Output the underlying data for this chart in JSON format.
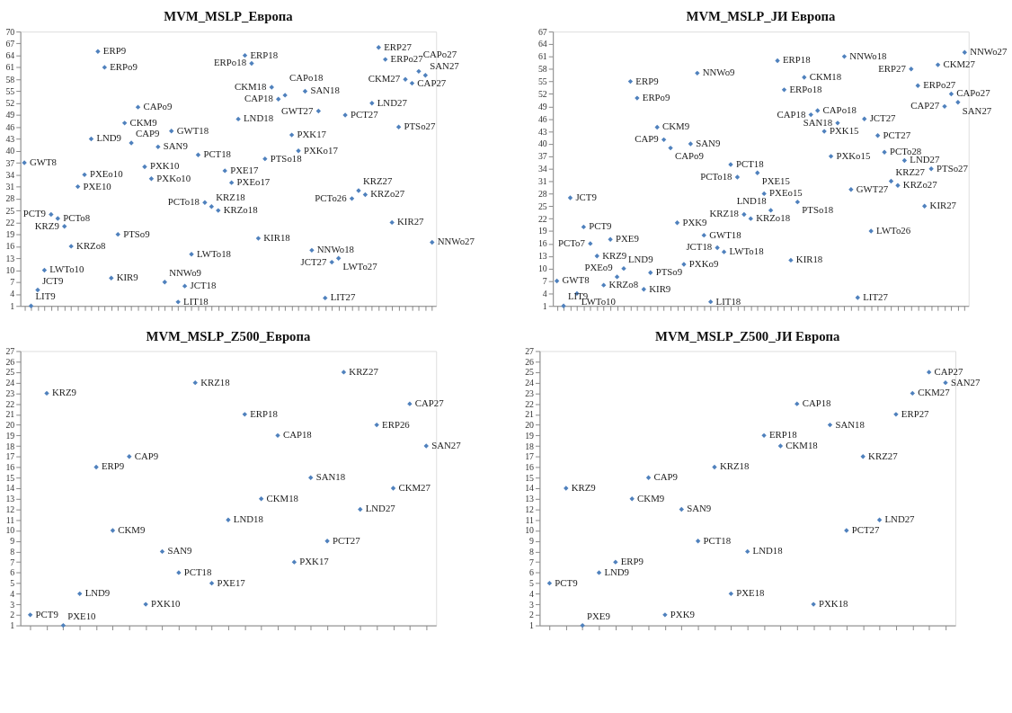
{
  "chart_data": [
    {
      "type": "scatter",
      "title": "MVM_MSLP_Европа",
      "marker": "diamond",
      "grid": false,
      "tick_labels": "y",
      "color": "#4f81bd",
      "categories": [
        null,
        null,
        null,
        null,
        null,
        null,
        null,
        null,
        null,
        null,
        null,
        null,
        null,
        null,
        null,
        null,
        null,
        null,
        null,
        null,
        null,
        null,
        null,
        null,
        null,
        null,
        null,
        null,
        null,
        null,
        null,
        null,
        null,
        null,
        null,
        null,
        null,
        null,
        null,
        null,
        null,
        null,
        null,
        null,
        null,
        null,
        null,
        null,
        null,
        null,
        null,
        null,
        null,
        null,
        null,
        null,
        null,
        null,
        null,
        null,
        null,
        null
      ],
      "values": [
        37,
        1,
        5,
        10,
        24,
        23,
        21,
        16,
        31,
        34,
        43,
        65,
        61,
        8,
        19,
        47,
        42,
        51,
        36,
        33,
        41,
        7,
        45,
        2,
        6,
        14,
        39,
        27,
        26,
        25,
        35,
        32,
        48,
        64,
        62,
        18,
        38,
        56,
        53,
        54,
        44,
        40,
        55,
        15,
        50,
        3,
        12,
        13,
        49,
        28,
        30,
        29,
        52,
        66,
        63,
        22,
        46,
        58,
        57,
        60,
        59,
        17
      ],
      "value_labels": [
        "GWT8",
        "LIT9",
        "JCT9",
        "LWTo10",
        "PCT9",
        "PCTo8",
        "KRZ9",
        "KRZo8",
        "PXE10",
        "PXEo10",
        "LND9",
        "ERP9",
        "ERPo9",
        "KIR9",
        "PTSo9",
        "CKM9",
        "CAP9",
        "CAPo9",
        "PXK10",
        "PXKo10",
        "SAN9",
        "NNWo9",
        "GWT18",
        "LIT18",
        "JCT18",
        "LWTo18",
        "PCT18",
        "PCTo18",
        "KRZ18",
        "KRZo18",
        "PXE17",
        "PXEo17",
        "LND18",
        "ERP18",
        "ERPo18",
        "KIR18",
        "PTSo18",
        "CKM18",
        "CAP18",
        "CAPo18",
        "PXK17",
        "PXKo17",
        "SAN18",
        "NNWo18",
        "GWT27",
        "LIT27",
        "JCT27",
        "LWTo27",
        "PCT27",
        "PCTo26",
        "KRZ27",
        "KRZo27",
        "LND27",
        "ERP27",
        "ERPo27",
        "KIR27",
        "PTSo27",
        "CKM27",
        "CAP27",
        "CAPo27",
        "SAN27",
        "NNWo27"
      ],
      "ylim": [
        1,
        70
      ],
      "yticks": [
        1,
        4,
        7,
        10,
        13,
        16,
        19,
        22,
        25,
        28,
        31,
        34,
        37,
        40,
        43,
        46,
        49,
        52,
        55,
        58,
        61,
        64,
        67,
        70
      ]
    },
    {
      "type": "scatter",
      "title": "MVM_MSLP_ЈИ Европа",
      "marker": "diamond",
      "grid": false,
      "tick_labels": "y",
      "color": "#4f81bd",
      "categories": [
        null,
        null,
        null,
        null,
        null,
        null,
        null,
        null,
        null,
        null,
        null,
        null,
        null,
        null,
        null,
        null,
        null,
        null,
        null,
        null,
        null,
        null,
        null,
        null,
        null,
        null,
        null,
        null,
        null,
        null,
        null,
        null,
        null,
        null,
        null,
        null,
        null,
        null,
        null,
        null,
        null,
        null,
        null,
        null,
        null,
        null,
        null,
        null,
        null,
        null,
        null,
        null,
        null,
        null,
        null,
        null,
        null,
        null,
        null,
        null,
        null,
        null
      ],
      "values": [
        7,
        1,
        27,
        4,
        20,
        16,
        13,
        6,
        17,
        8,
        10,
        55,
        51,
        5,
        9,
        44,
        41,
        39,
        21,
        11,
        40,
        57,
        18,
        2,
        15,
        14,
        35,
        32,
        23,
        22,
        33,
        28,
        24,
        60,
        53,
        12,
        26,
        56,
        47,
        48,
        43,
        37,
        45,
        61,
        29,
        3,
        46,
        19,
        42,
        38,
        31,
        30,
        36,
        58,
        54,
        25,
        34,
        59,
        49,
        52,
        50,
        62
      ],
      "value_labels": [
        "GWT8",
        "LIT9",
        "JCT9",
        "LWTo10",
        "PCT9",
        "PCTo7",
        "KRZ9",
        "KRZo8",
        "PXE9",
        "PXEo9",
        "LND9",
        "ERP9",
        "ERPo9",
        "KIR9",
        "PTSo9",
        "CKM9",
        "CAP9",
        "CAPo9",
        "PXK9",
        "PXKo9",
        "SAN9",
        "NNWo9",
        "GWT18",
        "LIT18",
        "JCT18",
        "LWTo18",
        "PCT18",
        "PCTo18",
        "KRZ18",
        "KRZo18",
        "PXE15",
        "PXEo15",
        "LND18",
        "ERP18",
        "ERPo18",
        "KIR18",
        "PTSo18",
        "CKM18",
        "CAP18",
        "CAPo18",
        "PXK15",
        "PXKo15",
        "SAN18",
        "NNWo18",
        "GWT27",
        "LIT27",
        "JCT27",
        "LWTo26",
        "PCT27",
        "PCTo28",
        "KRZ27",
        "KRZo27",
        "LND27",
        "ERP27",
        "ERPo27",
        "KIR27",
        "PTSo27",
        "CKM27",
        "CAP27",
        "CAPo27",
        "SAN27",
        "NNWo27"
      ],
      "ylim": [
        1,
        67
      ],
      "yticks": [
        1,
        4,
        7,
        10,
        13,
        16,
        19,
        22,
        25,
        28,
        31,
        34,
        37,
        40,
        43,
        46,
        49,
        52,
        55,
        58,
        61,
        64,
        67
      ]
    },
    {
      "type": "scatter",
      "title": "MVM_MSLP_Z500_Европа",
      "marker": "diamond",
      "grid": false,
      "tick_labels": "y",
      "color": "#4f81bd",
      "categories": [
        null,
        null,
        null,
        null,
        null,
        null,
        null,
        null,
        null,
        null,
        null,
        null,
        null,
        null,
        null,
        null,
        null,
        null,
        null,
        null,
        null,
        null,
        null,
        null,
        null
      ],
      "values": [
        2,
        23,
        1,
        4,
        16,
        10,
        17,
        3,
        8,
        6,
        24,
        5,
        11,
        21,
        13,
        19,
        7,
        15,
        9,
        25,
        12,
        20,
        14,
        22,
        18
      ],
      "value_labels": [
        "PCT9",
        "KRZ9",
        "PXE10",
        "LND9",
        "ERP9",
        "CKM9",
        "CAP9",
        "PXK10",
        "SAN9",
        "PCT18",
        "KRZ18",
        "PXE17",
        "LND18",
        "ERP18",
        "CKM18",
        "CAP18",
        "PXK17",
        "SAN18",
        "PCT27",
        "KRZ27",
        "LND27",
        "ERP26",
        "CKM27",
        "CAP27",
        "SAN27"
      ],
      "ylim": [
        1,
        27
      ],
      "yticks": [
        1,
        2,
        3,
        4,
        5,
        6,
        7,
        8,
        9,
        10,
        11,
        12,
        13,
        14,
        15,
        16,
        17,
        18,
        19,
        20,
        21,
        22,
        23,
        24,
        25,
        26,
        27
      ]
    },
    {
      "type": "scatter",
      "title": "MVM_MSLP_Z500_ЈИ Европа",
      "marker": "diamond",
      "grid": false,
      "tick_labels": "y",
      "color": "#4f81bd",
      "categories": [
        null,
        null,
        null,
        null,
        null,
        null,
        null,
        null,
        null,
        null,
        null,
        null,
        null,
        null,
        null,
        null,
        null,
        null,
        null,
        null,
        null,
        null,
        null,
        null,
        null
      ],
      "values": [
        5,
        14,
        1,
        6,
        7,
        13,
        15,
        2,
        12,
        9,
        16,
        4,
        8,
        19,
        18,
        22,
        3,
        20,
        10,
        17,
        11,
        21,
        23,
        25,
        24
      ],
      "value_labels": [
        "PCT9",
        "KRZ9",
        "PXE9",
        "LND9",
        "ERP9",
        "CKM9",
        "CAP9",
        "PXK9",
        "SAN9",
        "PCT18",
        "KRZ18",
        "PXE18",
        "LND18",
        "ERP18",
        "CKM18",
        "CAP18",
        "PXK18",
        "SAN18",
        "PCT27",
        "KRZ27",
        "LND27",
        "ERP27",
        "CKM27",
        "CAP27",
        "SAN27"
      ],
      "ylim": [
        1,
        27
      ],
      "yticks": [
        1,
        2,
        3,
        4,
        5,
        6,
        7,
        8,
        9,
        10,
        11,
        12,
        13,
        14,
        15,
        16,
        17,
        18,
        19,
        20,
        21,
        22,
        23,
        24,
        25,
        26,
        27
      ]
    }
  ]
}
